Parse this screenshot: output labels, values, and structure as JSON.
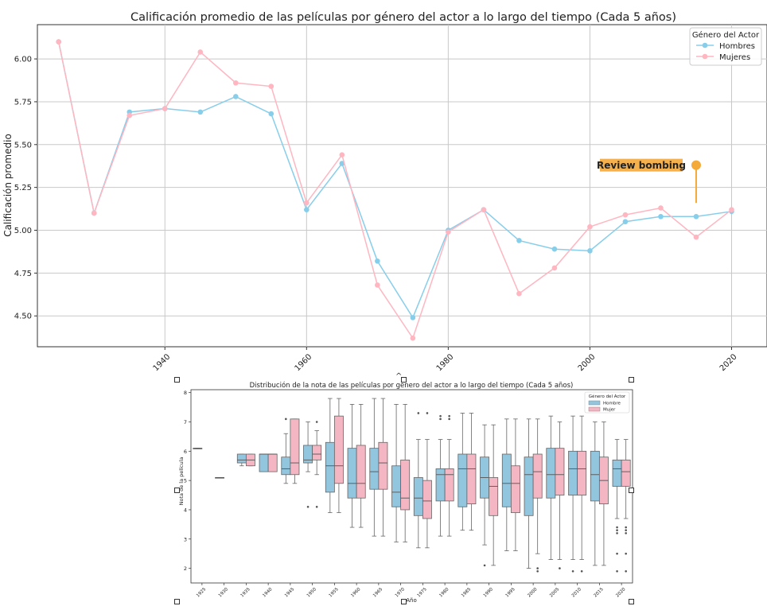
{
  "chart_data": [
    {
      "type": "line",
      "title": "Calificación promedio de las películas por género del actor a lo largo del tiempo (Cada 5 años)",
      "xlabel": "",
      "ylabel": "Calificación promedio",
      "xlim": [
        1922,
        2025
      ],
      "ylim": [
        4.32,
        6.2
      ],
      "xticks": [
        1940,
        1960,
        1980,
        2000,
        2020
      ],
      "yticks": [
        "4.50",
        "4.75",
        "5.00",
        "5.25",
        "5.50",
        "5.75",
        "6.00"
      ],
      "grid": true,
      "legend": {
        "title": "Género del Actor",
        "placement": "top-right"
      },
      "series": [
        {
          "name": "Hombres",
          "color": "#87CEEB",
          "points": [
            [
              1925,
              6.1
            ],
            [
              1930,
              5.1
            ],
            [
              1935,
              5.69
            ],
            [
              1940,
              5.71
            ],
            [
              1945,
              5.69
            ],
            [
              1950,
              5.78
            ],
            [
              1955,
              5.68
            ],
            [
              1960,
              5.12
            ],
            [
              1965,
              5.39
            ],
            [
              1970,
              4.82
            ],
            [
              1975,
              4.49
            ],
            [
              1980,
              5.0
            ],
            [
              1985,
              5.12
            ],
            [
              1990,
              4.94
            ],
            [
              1995,
              4.89
            ],
            [
              2000,
              4.88
            ],
            [
              2005,
              5.05
            ],
            [
              2010,
              5.08
            ],
            [
              2015,
              5.08
            ],
            [
              2020,
              5.11
            ]
          ]
        },
        {
          "name": "Mujeres",
          "color": "#FFB6C1",
          "points": [
            [
              1925,
              6.1
            ],
            [
              1930,
              5.1
            ],
            [
              1935,
              5.67
            ],
            [
              1940,
              5.71
            ],
            [
              1945,
              6.04
            ],
            [
              1950,
              5.86
            ],
            [
              1955,
              5.84
            ],
            [
              1960,
              5.16
            ],
            [
              1965,
              5.44
            ],
            [
              1970,
              4.68
            ],
            [
              1975,
              4.37
            ],
            [
              1980,
              4.99
            ],
            [
              1985,
              5.12
            ],
            [
              1990,
              4.63
            ],
            [
              1995,
              4.78
            ],
            [
              2000,
              5.02
            ],
            [
              2005,
              5.09
            ],
            [
              2010,
              5.13
            ],
            [
              2015,
              4.96
            ],
            [
              2020,
              5.12
            ]
          ]
        }
      ],
      "annotation": {
        "text": "Review bombing",
        "x": 2015,
        "y": 5.38,
        "line_to_y": 5.16,
        "color": "#F4A93B"
      }
    },
    {
      "type": "box",
      "title": "Distribución de la nota de las películas por género del actor a lo largo del tiempo (Cada 5 años)",
      "xlabel": "Año",
      "ylabel": "Nota de la película",
      "ylim": [
        1.5,
        8.1
      ],
      "yticks": [
        2,
        3,
        4,
        5,
        6,
        7,
        8
      ],
      "categories": [
        "1925",
        "1930",
        "1935",
        "1940",
        "1945",
        "1950",
        "1955",
        "1960",
        "1965",
        "1970",
        "1975",
        "1980",
        "1985",
        "1990",
        "1995",
        "2000",
        "2005",
        "2010",
        "2015",
        "2020"
      ],
      "legend": {
        "title": "Género del Actor",
        "placement": "top-right"
      },
      "series": [
        {
          "name": "Hombre",
          "color": "#92C5DE",
          "boxes": [
            {
              "min": 6.1,
              "q1": 6.1,
              "med": 6.1,
              "q3": 6.1,
              "max": 6.1,
              "fliers": []
            },
            {
              "min": 5.1,
              "q1": 5.1,
              "med": 5.1,
              "q3": 5.1,
              "max": 5.1,
              "fliers": []
            },
            {
              "min": 5.5,
              "q1": 5.6,
              "med": 5.7,
              "q3": 5.9,
              "max": 5.9,
              "fliers": []
            },
            {
              "min": 5.3,
              "q1": 5.3,
              "med": 5.9,
              "q3": 5.9,
              "max": 5.9,
              "fliers": []
            },
            {
              "min": 4.9,
              "q1": 5.2,
              "med": 5.4,
              "q3": 5.8,
              "max": 6.6,
              "fliers": [
                7.1
              ]
            },
            {
              "min": 5.3,
              "q1": 5.6,
              "med": 5.7,
              "q3": 6.2,
              "max": 7.0,
              "fliers": [
                4.1
              ]
            },
            {
              "min": 3.9,
              "q1": 4.6,
              "med": 5.5,
              "q3": 6.3,
              "max": 7.8,
              "fliers": []
            },
            {
              "min": 3.4,
              "q1": 4.4,
              "med": 4.9,
              "q3": 6.1,
              "max": 7.6,
              "fliers": []
            },
            {
              "min": 3.1,
              "q1": 4.7,
              "med": 5.3,
              "q3": 6.1,
              "max": 7.8,
              "fliers": []
            },
            {
              "min": 2.9,
              "q1": 4.1,
              "med": 4.6,
              "q3": 5.5,
              "max": 7.6,
              "fliers": []
            },
            {
              "min": 2.7,
              "q1": 3.8,
              "med": 4.4,
              "q3": 5.1,
              "max": 6.4,
              "fliers": [
                7.3
              ]
            },
            {
              "min": 3.1,
              "q1": 4.3,
              "med": 5.2,
              "q3": 5.4,
              "max": 6.4,
              "fliers": [
                7.2,
                7.1
              ]
            },
            {
              "min": 3.3,
              "q1": 4.1,
              "med": 5.4,
              "q3": 5.9,
              "max": 7.3,
              "fliers": []
            },
            {
              "min": 2.8,
              "q1": 4.4,
              "med": 5.1,
              "q3": 5.8,
              "max": 6.9,
              "fliers": [
                2.1
              ]
            },
            {
              "min": 2.6,
              "q1": 4.1,
              "med": 4.9,
              "q3": 5.9,
              "max": 7.1,
              "fliers": []
            },
            {
              "min": 2.0,
              "q1": 3.8,
              "med": 5.2,
              "q3": 5.8,
              "max": 7.1,
              "fliers": []
            },
            {
              "min": 2.3,
              "q1": 4.4,
              "med": 5.2,
              "q3": 6.1,
              "max": 7.2,
              "fliers": []
            },
            {
              "min": 2.3,
              "q1": 4.5,
              "med": 5.4,
              "q3": 6.0,
              "max": 7.2,
              "fliers": [
                1.9
              ]
            },
            {
              "min": 2.1,
              "q1": 4.3,
              "med": 5.2,
              "q3": 6.0,
              "max": 7.0,
              "fliers": []
            },
            {
              "min": 3.7,
              "q1": 4.8,
              "med": 5.4,
              "q3": 5.7,
              "max": 6.4,
              "fliers": [
                3.4,
                3.3,
                3.2,
                2.5,
                1.9
              ]
            }
          ]
        },
        {
          "name": "Mujer",
          "color": "#F4B6C2",
          "boxes": [
            null,
            null,
            {
              "min": 5.5,
              "q1": 5.5,
              "med": 5.7,
              "q3": 5.9,
              "max": 5.9,
              "fliers": []
            },
            {
              "min": 5.3,
              "q1": 5.3,
              "med": 5.9,
              "q3": 5.9,
              "max": 5.9,
              "fliers": []
            },
            {
              "min": 4.9,
              "q1": 5.2,
              "med": 5.6,
              "q3": 7.1,
              "max": 7.1,
              "fliers": []
            },
            {
              "min": 5.2,
              "q1": 5.7,
              "med": 5.9,
              "q3": 6.2,
              "max": 6.7,
              "fliers": [
                4.1,
                7.0
              ]
            },
            {
              "min": 3.9,
              "q1": 4.9,
              "med": 5.5,
              "q3": 7.2,
              "max": 7.8,
              "fliers": []
            },
            {
              "min": 3.4,
              "q1": 4.4,
              "med": 4.9,
              "q3": 6.2,
              "max": 7.6,
              "fliers": []
            },
            {
              "min": 3.1,
              "q1": 4.7,
              "med": 5.6,
              "q3": 6.3,
              "max": 7.8,
              "fliers": []
            },
            {
              "min": 2.9,
              "q1": 4.0,
              "med": 4.4,
              "q3": 5.7,
              "max": 7.6,
              "fliers": []
            },
            {
              "min": 2.7,
              "q1": 3.7,
              "med": 4.3,
              "q3": 5.0,
              "max": 6.4,
              "fliers": [
                7.3
              ]
            },
            {
              "min": 3.1,
              "q1": 4.3,
              "med": 5.2,
              "q3": 5.4,
              "max": 6.4,
              "fliers": [
                7.2,
                7.1
              ]
            },
            {
              "min": 3.3,
              "q1": 4.2,
              "med": 5.4,
              "q3": 5.9,
              "max": 7.3,
              "fliers": []
            },
            {
              "min": 2.1,
              "q1": 3.8,
              "med": 4.8,
              "q3": 5.1,
              "max": 6.9,
              "fliers": []
            },
            {
              "min": 2.6,
              "q1": 3.9,
              "med": 4.9,
              "q3": 5.5,
              "max": 7.1,
              "fliers": []
            },
            {
              "min": 2.5,
              "q1": 4.4,
              "med": 5.3,
              "q3": 5.9,
              "max": 7.1,
              "fliers": [
                2.0,
                1.9
              ]
            },
            {
              "min": 2.3,
              "q1": 4.5,
              "med": 5.2,
              "q3": 6.1,
              "max": 7.0,
              "fliers": [
                2.0
              ]
            },
            {
              "min": 2.3,
              "q1": 4.5,
              "med": 5.4,
              "q3": 6.0,
              "max": 7.2,
              "fliers": [
                1.9
              ]
            },
            {
              "min": 2.1,
              "q1": 4.2,
              "med": 5.0,
              "q3": 5.8,
              "max": 7.0,
              "fliers": []
            },
            {
              "min": 3.7,
              "q1": 4.8,
              "med": 5.3,
              "q3": 5.7,
              "max": 6.4,
              "fliers": [
                3.4,
                3.3,
                3.2,
                2.5,
                1.9
              ]
            }
          ]
        }
      ]
    }
  ]
}
